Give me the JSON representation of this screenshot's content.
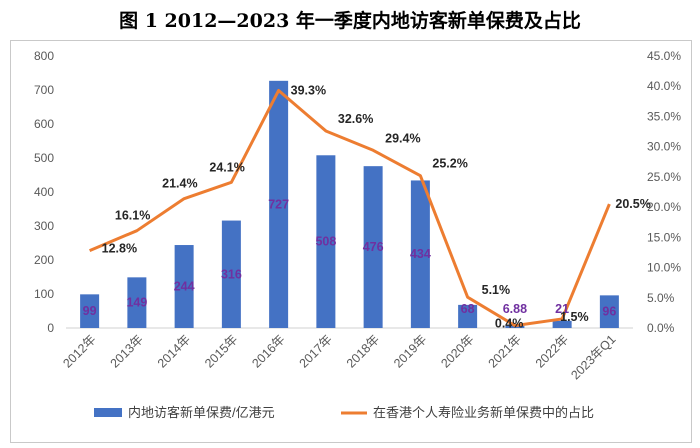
{
  "title": "图 1  2012—2023 年一季度内地访客新单保费及占比",
  "chart_data": {
    "type": "bar",
    "categories": [
      "2012年",
      "2013年",
      "2014年",
      "2015年",
      "2016年",
      "2017年",
      "2018年",
      "2019年",
      "2020年",
      "2021年",
      "2022年",
      "2023年Q1"
    ],
    "series": [
      {
        "name": "内地访客新单保费/亿港元",
        "type": "bar",
        "axis": "left",
        "color": "#4472C4",
        "label_color": "#7030A0",
        "values": [
          99,
          149,
          244,
          316,
          727,
          508,
          476,
          434,
          68,
          6.88,
          21,
          96
        ],
        "labels": [
          "99",
          "149",
          "244",
          "316",
          "727",
          "508",
          "476",
          "434",
          "68",
          "6.88",
          "21",
          "96"
        ]
      },
      {
        "name": "在香港个人寿险业务新单保费中的占比",
        "type": "line",
        "axis": "right",
        "color": "#ED7D31",
        "label_color": "#262626",
        "values": [
          12.8,
          16.1,
          21.4,
          24.1,
          39.3,
          32.6,
          29.4,
          25.2,
          5.1,
          0.4,
          1.5,
          20.5
        ],
        "labels": [
          "12.8%",
          "16.1%",
          "21.4%",
          "24.1%",
          "39.3%",
          "32.6%",
          "29.4%",
          "25.2%",
          "5.1%",
          "0.4%",
          "1.5%",
          "20.5%"
        ]
      }
    ],
    "y_left": {
      "min": 0,
      "max": 800,
      "ticks": [
        "0",
        "100",
        "200",
        "300",
        "400",
        "500",
        "600",
        "700",
        "800"
      ]
    },
    "y_right": {
      "min": 0,
      "max": 45,
      "ticks": [
        "0.0%",
        "5.0%",
        "10.0%",
        "15.0%",
        "20.0%",
        "25.0%",
        "30.0%",
        "35.0%",
        "40.0%",
        "45.0%"
      ]
    },
    "grid": false,
    "legend_position": "bottom"
  }
}
